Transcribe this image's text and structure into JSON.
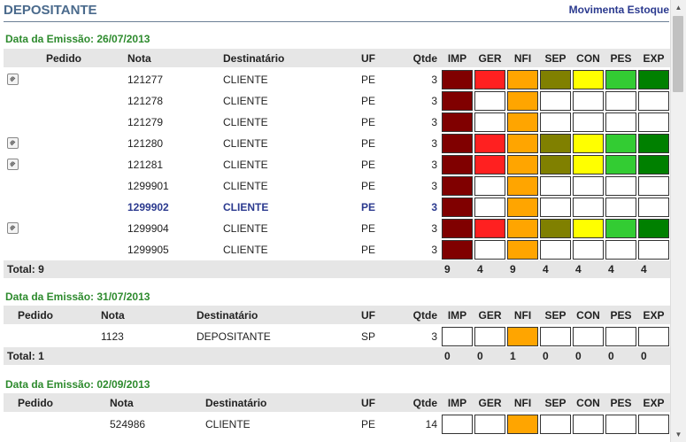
{
  "header": {
    "title": "DEPOSITANTE",
    "link_label": "Movimenta Estoque"
  },
  "columns": {
    "pedido": "Pedido",
    "nota": "Nota",
    "destinatario": "Destinatário",
    "uf": "UF",
    "qtde": "Qtde",
    "status": [
      "IMP",
      "GER",
      "NFI",
      "SEP",
      "CON",
      "PES",
      "EXP"
    ]
  },
  "colors": {
    "IMP": "#800000",
    "GER": "#ff2020",
    "NFI": "#ffa500",
    "SEP": "#808000",
    "CON": "#ffff00",
    "PES": "#33cc33",
    "EXP": "#008000",
    "empty": "#ffffff"
  },
  "groups": [
    {
      "date_label": "Data da Emissão: 26/07/2013",
      "rows": [
        {
          "attach": true,
          "pedido": "",
          "nota": "121277",
          "destinatario": "CLIENTE",
          "uf": "PE",
          "qtde": "3",
          "status": [
            1,
            1,
            1,
            1,
            1,
            1,
            1
          ]
        },
        {
          "attach": false,
          "pedido": "",
          "nota": "121278",
          "destinatario": "CLIENTE",
          "uf": "PE",
          "qtde": "3",
          "status": [
            1,
            0,
            1,
            0,
            0,
            0,
            0
          ]
        },
        {
          "attach": false,
          "pedido": "",
          "nota": "121279",
          "destinatario": "CLIENTE",
          "uf": "PE",
          "qtde": "3",
          "status": [
            1,
            0,
            1,
            0,
            0,
            0,
            0
          ]
        },
        {
          "attach": true,
          "pedido": "",
          "nota": "121280",
          "destinatario": "CLIENTE",
          "uf": "PE",
          "qtde": "3",
          "status": [
            1,
            1,
            1,
            1,
            1,
            1,
            1
          ]
        },
        {
          "attach": true,
          "pedido": "",
          "nota": "121281",
          "destinatario": "CLIENTE",
          "uf": "PE",
          "qtde": "3",
          "status": [
            1,
            1,
            1,
            1,
            1,
            1,
            1
          ]
        },
        {
          "attach": false,
          "pedido": "",
          "nota": "1299901",
          "destinatario": "CLIENTE",
          "uf": "PE",
          "qtde": "3",
          "status": [
            1,
            0,
            1,
            0,
            0,
            0,
            0
          ]
        },
        {
          "attach": false,
          "pedido": "",
          "nota": "1299902",
          "destinatario": "CLIENTE",
          "uf": "PE",
          "qtde": "3",
          "status": [
            1,
            0,
            1,
            0,
            0,
            0,
            0
          ],
          "highlight": true
        },
        {
          "attach": true,
          "pedido": "",
          "nota": "1299904",
          "destinatario": "CLIENTE",
          "uf": "PE",
          "qtde": "3",
          "status": [
            1,
            1,
            1,
            1,
            1,
            1,
            1
          ]
        },
        {
          "attach": false,
          "pedido": "",
          "nota": "1299905",
          "destinatario": "CLIENTE",
          "uf": "PE",
          "qtde": "3",
          "status": [
            1,
            0,
            1,
            0,
            0,
            0,
            0
          ]
        }
      ],
      "total_label": "Total: 9",
      "totals": [
        "9",
        "4",
        "9",
        "4",
        "4",
        "4",
        "4"
      ]
    },
    {
      "date_label": "Data da Emissão: 31/07/2013",
      "rows": [
        {
          "attach": false,
          "pedido": "",
          "nota": "1123",
          "destinatario": "DEPOSITANTE",
          "uf": "SP",
          "qtde": "3",
          "status": [
            0,
            0,
            1,
            0,
            0,
            0,
            0
          ]
        }
      ],
      "total_label": "Total: 1",
      "totals": [
        "0",
        "0",
        "1",
        "0",
        "0",
        "0",
        "0"
      ]
    },
    {
      "date_label": "Data da Emissão: 02/09/2013",
      "rows": [
        {
          "attach": false,
          "pedido": "",
          "nota": "524986",
          "destinatario": "CLIENTE",
          "uf": "PE",
          "qtde": "14",
          "status": [
            0,
            0,
            1,
            0,
            0,
            0,
            0
          ]
        }
      ]
    }
  ]
}
